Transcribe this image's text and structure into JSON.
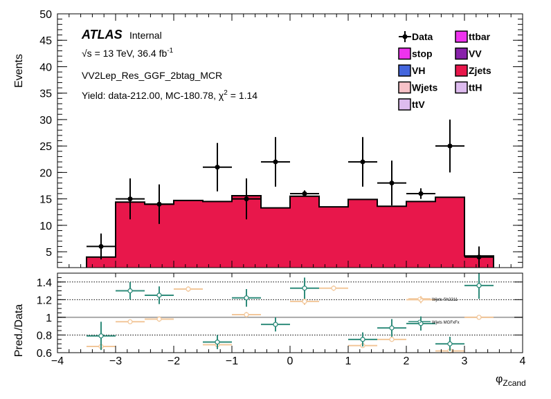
{
  "colors": {
    "data": "#000000",
    "stop": "#ee33ee",
    "ttbar": "#ee33ee",
    "VH": "#4466dd",
    "VV": "#8822aa",
    "Zjets": "#e8174b",
    "Wjets": "#f7c2c8",
    "ttH": "#ddbbee",
    "ttV": "#ddbbee",
    "ratio_sh": "#2e8b7a",
    "ratio_mg": "#f2c79a",
    "unity": "#aaaaaa"
  },
  "labels": {
    "atlas": "ATLAS",
    "internal": "Internal",
    "energy": "√s = 13 TeV, 36.4 fb",
    "energy_sup": "-1",
    "region": "VV2Lep_Res_GGF_2btag_MCR",
    "yield": "Yield: data-212.00, MC-180.78, χ",
    "yield_sup": "2",
    "yield_end": " = 1.14",
    "ylabel_top": "Events",
    "ylabel_bottom": "Pred./Data",
    "xlabel_main": "φ",
    "xlabel_sub": "Zcand",
    "ratio_leg_sh": "Wjets Sh2211",
    "ratio_leg_mg": "Wjets MGFxFx"
  },
  "legend": [
    {
      "key": "data",
      "label": "Data",
      "col": 0,
      "row": 0,
      "marker": true
    },
    {
      "key": "ttbar",
      "label": "ttbar",
      "col": 1,
      "row": 0
    },
    {
      "key": "stop",
      "label": "stop",
      "col": 0,
      "row": 1
    },
    {
      "key": "VV",
      "label": "VV",
      "col": 1,
      "row": 1
    },
    {
      "key": "VH",
      "label": "VH",
      "col": 0,
      "row": 2
    },
    {
      "key": "Zjets",
      "label": "Zjets",
      "col": 1,
      "row": 2
    },
    {
      "key": "Wjets",
      "label": "Wjets",
      "col": 0,
      "row": 3
    },
    {
      "key": "ttH",
      "label": "ttH",
      "col": 1,
      "row": 3
    },
    {
      "key": "ttV",
      "label": "ttV",
      "col": 0,
      "row": 4
    }
  ],
  "chart_data": {
    "type": "bar",
    "xlim": [
      -4,
      4
    ],
    "ylim_top": [
      2,
      50
    ],
    "ylim_bottom": [
      0.6,
      1.5
    ],
    "x_ticks": [
      -4,
      -3,
      -2,
      -1,
      0,
      1,
      2,
      3,
      4
    ],
    "y_ticks_top": [
      5,
      10,
      15,
      20,
      25,
      30,
      35,
      40,
      45,
      50
    ],
    "y_ticks_bottom": [
      0.6,
      0.8,
      1,
      1.2,
      1.4
    ],
    "y_tick_labels_bottom": [
      "0.6",
      "0.8",
      "1",
      "1.2",
      "1.4"
    ],
    "ratio_reference_lines": [
      0.8,
      1.2,
      1.4
    ],
    "bins": [
      {
        "lo": -3.5,
        "hi": -3.0
      },
      {
        "lo": -3.0,
        "hi": -2.5
      },
      {
        "lo": -2.5,
        "hi": -2.0
      },
      {
        "lo": -2.0,
        "hi": -1.5
      },
      {
        "lo": -1.5,
        "hi": -1.0
      },
      {
        "lo": -1.0,
        "hi": -0.5
      },
      {
        "lo": -0.5,
        "hi": 0.0
      },
      {
        "lo": 0.0,
        "hi": 0.5
      },
      {
        "lo": 0.5,
        "hi": 1.0
      },
      {
        "lo": 1.0,
        "hi": 1.5
      },
      {
        "lo": 1.5,
        "hi": 2.0
      },
      {
        "lo": 2.0,
        "hi": 2.5
      },
      {
        "lo": 2.5,
        "hi": 3.0
      },
      {
        "lo": 3.0,
        "hi": 3.5
      }
    ],
    "zjets": [
      4.0,
      14.4,
      14.0,
      14.7,
      14.5,
      15.6,
      13.3,
      15.5,
      13.5,
      14.9,
      13.6,
      14.5,
      15.3,
      4.2
    ],
    "data": [
      {
        "x": -3.25,
        "y": 6,
        "err": 2.45
      },
      {
        "x": -2.75,
        "y": 15,
        "err": 3.87
      },
      {
        "x": -2.25,
        "y": 14,
        "err": 3.74
      },
      {
        "x": -1.25,
        "y": 21,
        "err": 4.58
      },
      {
        "x": -0.75,
        "y": 15,
        "err": 3.87
      },
      {
        "x": -0.25,
        "y": 22,
        "err": 4.69
      },
      {
        "x": 0.25,
        "y": 16,
        "err": 0.6
      },
      {
        "x": 1.25,
        "y": 22,
        "err": 4.69
      },
      {
        "x": 1.75,
        "y": 18,
        "err": 4.24
      },
      {
        "x": 2.25,
        "y": 16,
        "err": 1.0
      },
      {
        "x": 2.75,
        "y": 25,
        "err": 5.0
      },
      {
        "x": 3.25,
        "y": 4,
        "err": 2.0
      }
    ],
    "ratio_sh": [
      {
        "x": -3.25,
        "y": 0.79,
        "err": 0.16
      },
      {
        "x": -2.75,
        "y": 1.3,
        "err": 0.1
      },
      {
        "x": -2.25,
        "y": 1.25,
        "err": 0.1
      },
      {
        "x": -1.25,
        "y": 0.72,
        "err": 0.08
      },
      {
        "x": -0.75,
        "y": 1.22,
        "err": 0.1
      },
      {
        "x": -0.25,
        "y": 0.92,
        "err": 0.08
      },
      {
        "x": 0.25,
        "y": 1.33,
        "err": 0.12
      },
      {
        "x": 1.25,
        "y": 0.75,
        "err": 0.08
      },
      {
        "x": 1.75,
        "y": 0.88,
        "err": 0.1
      },
      {
        "x": 2.25,
        "y": 0.93,
        "err": 0.08
      },
      {
        "x": 2.75,
        "y": 0.7,
        "err": 0.08
      },
      {
        "x": 3.25,
        "y": 1.36,
        "err": 0.15
      }
    ],
    "ratio_mg": [
      {
        "x": -3.25,
        "y": 0.67,
        "err": 0.02
      },
      {
        "x": -2.75,
        "y": 0.95,
        "err": 0.02
      },
      {
        "x": -2.25,
        "y": 0.98,
        "err": 0.03
      },
      {
        "x": -1.75,
        "y": 1.32,
        "err": 0.03
      },
      {
        "x": -1.25,
        "y": 0.69,
        "err": 0.02
      },
      {
        "x": -0.75,
        "y": 1.03,
        "err": 0.03
      },
      {
        "x": 0.25,
        "y": 1.18,
        "err": 0.04
      },
      {
        "x": 0.75,
        "y": 1.33,
        "err": 0.03
      },
      {
        "x": 1.25,
        "y": 0.68,
        "err": 0.02
      },
      {
        "x": 1.75,
        "y": 0.75,
        "err": 0.02
      },
      {
        "x": 2.25,
        "y": 1.2,
        "err": 0.04
      },
      {
        "x": 2.75,
        "y": 0.62,
        "err": 0.02
      },
      {
        "x": 3.25,
        "y": 1.0,
        "err": 0.02
      }
    ]
  }
}
